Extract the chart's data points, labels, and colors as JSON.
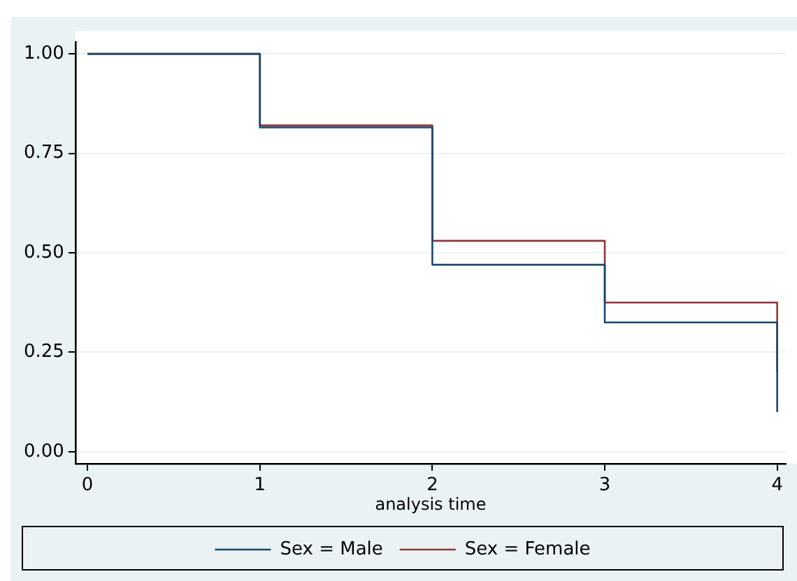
{
  "chart_data": {
    "type": "step",
    "xlabel": "analysis time",
    "xlim": [
      -0.07,
      4.05
    ],
    "xticks": [
      0,
      1,
      2,
      3,
      4
    ],
    "ylim": [
      -0.03,
      1.03
    ],
    "yticks": [
      {
        "value": 0,
        "label": "0.00"
      },
      {
        "value": 0.25,
        "label": "0.25"
      },
      {
        "value": 0.5,
        "label": "0.50"
      },
      {
        "value": 0.75,
        "label": "0.75"
      },
      {
        "value": 1,
        "label": "1.00"
      }
    ],
    "grid": "y",
    "legend": "bottom",
    "x": [
      0,
      1,
      2,
      3,
      4
    ],
    "series": [
      {
        "name": "Sex = Male",
        "color": "#1a476f",
        "values": [
          1,
          0.815,
          0.47,
          0.325,
          0.1
        ]
      },
      {
        "name": "Sex = Female",
        "color": "#90353b",
        "values": [
          1,
          0.82,
          0.53,
          0.375,
          0.2
        ]
      }
    ]
  }
}
